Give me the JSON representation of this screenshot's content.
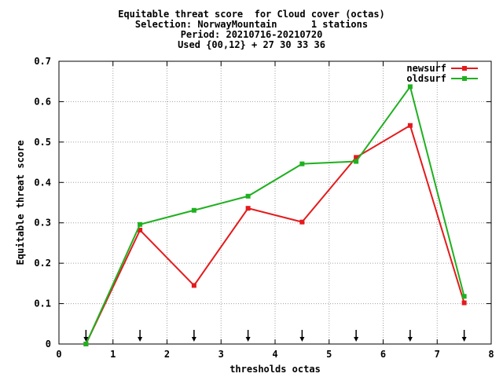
{
  "chart_data": {
    "type": "line",
    "title_lines": [
      "Equitable threat score  for Cloud cover (octas)",
      "Selection: NorwayMountain      1 stations",
      "Period: 20210716-20210720",
      "Used {00,12} + 27 30 33 36"
    ],
    "xlabel": "thresholds octas",
    "ylabel": "Equitable threat score",
    "xlim": [
      0,
      8
    ],
    "ylim": [
      0,
      0.7
    ],
    "xticks": [
      "0",
      "1",
      "2",
      "3",
      "4",
      "5",
      "6",
      "7",
      "8"
    ],
    "yticks": [
      "0",
      "0.1",
      "0.2",
      "0.3",
      "0.4",
      "0.5",
      "0.6",
      "0.7"
    ],
    "grid": true,
    "legend_position": "top-right",
    "x": [
      0.5,
      1.5,
      2.5,
      3.5,
      4.5,
      5.5,
      6.5,
      7.5
    ],
    "series": [
      {
        "name": "newsurf",
        "color": "#e41a1c",
        "values": [
          0.0,
          0.282,
          0.145,
          0.336,
          0.302,
          0.462,
          0.541,
          0.102
        ]
      },
      {
        "name": "oldsurf",
        "color": "#1fb01f",
        "values": [
          0.0,
          0.296,
          0.331,
          0.366,
          0.446,
          0.452,
          0.637,
          0.118
        ]
      }
    ],
    "arrows_at_x": [
      0.5,
      1.5,
      2.5,
      3.5,
      4.5,
      5.5,
      6.5,
      7.5
    ]
  }
}
